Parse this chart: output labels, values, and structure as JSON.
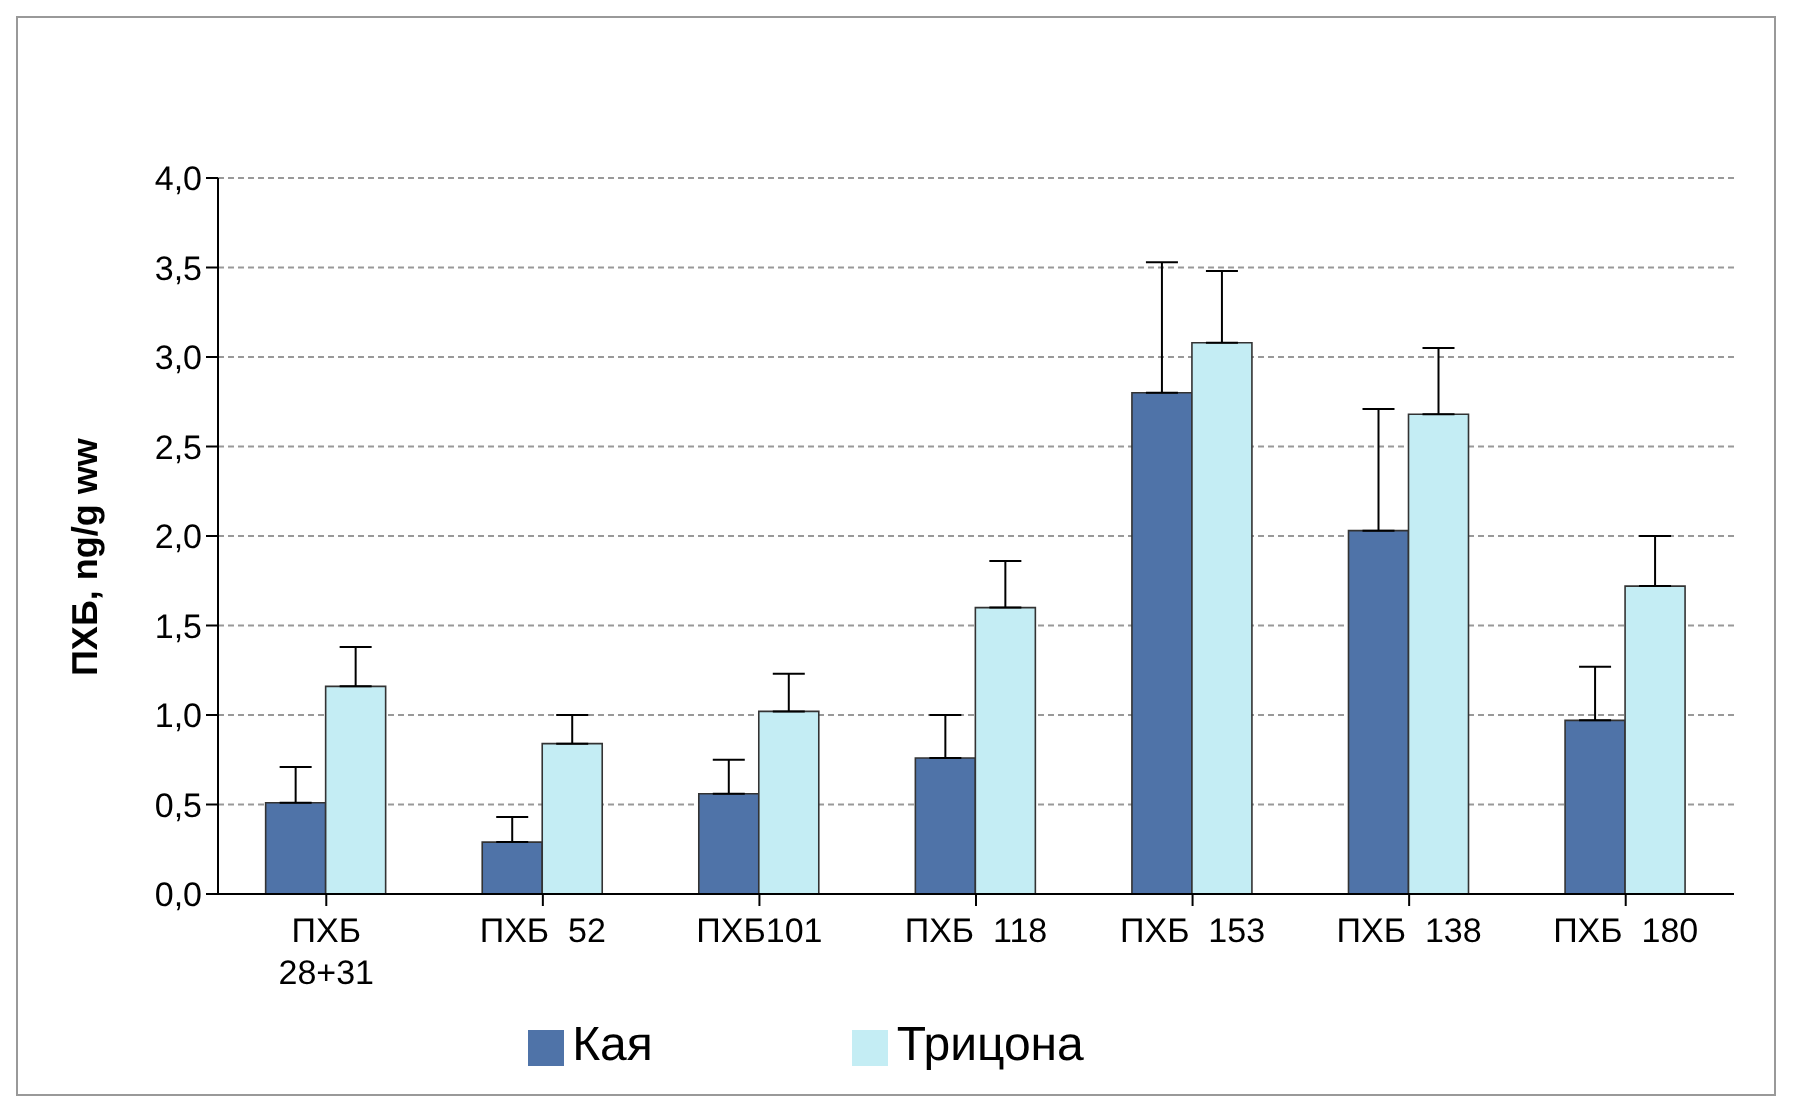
{
  "chart_data": {
    "type": "bar",
    "ylabel": "ПХБ, ng/g ww",
    "categories": [
      "ПХБ\n28+31",
      "ПХБ  52",
      "ПХБ101",
      "ПХБ  118",
      "ПХБ  153",
      "ПХБ  138",
      "ПХБ  180"
    ],
    "series": [
      {
        "name": "Кая",
        "color": "#4f73a8",
        "values": [
          0.51,
          0.29,
          0.56,
          0.76,
          2.8,
          2.03,
          0.97
        ],
        "errors": [
          [
            0.51,
            0.71
          ],
          [
            0.29,
            0.43
          ],
          [
            0.56,
            0.75
          ],
          [
            0.76,
            1.0
          ],
          [
            2.8,
            3.53
          ],
          [
            2.03,
            2.71
          ],
          [
            0.97,
            1.27
          ]
        ]
      },
      {
        "name": "Трицона",
        "color": "#c4edf4",
        "values": [
          1.16,
          0.84,
          1.02,
          1.6,
          3.08,
          2.68,
          1.72
        ],
        "errors": [
          [
            1.16,
            1.38
          ],
          [
            0.84,
            1.0
          ],
          [
            1.02,
            1.23
          ],
          [
            1.6,
            1.86
          ],
          [
            3.08,
            3.48
          ],
          [
            2.68,
            3.05
          ],
          [
            1.72,
            2.0
          ]
        ]
      }
    ],
    "ylim": [
      0,
      4
    ],
    "yticks": [
      {
        "value": 0,
        "label": "0,0"
      },
      {
        "value": 0.5,
        "label": "0,5"
      },
      {
        "value": 1,
        "label": "1,0"
      },
      {
        "value": 1.5,
        "label": "1,5"
      },
      {
        "value": 2,
        "label": "2,0"
      },
      {
        "value": 2.5,
        "label": "2,5"
      },
      {
        "value": 3,
        "label": "3,0"
      },
      {
        "value": 3.5,
        "label": "3,5"
      },
      {
        "value": 4,
        "label": "4,0"
      }
    ],
    "grid": "y",
    "legend": "bottom"
  }
}
